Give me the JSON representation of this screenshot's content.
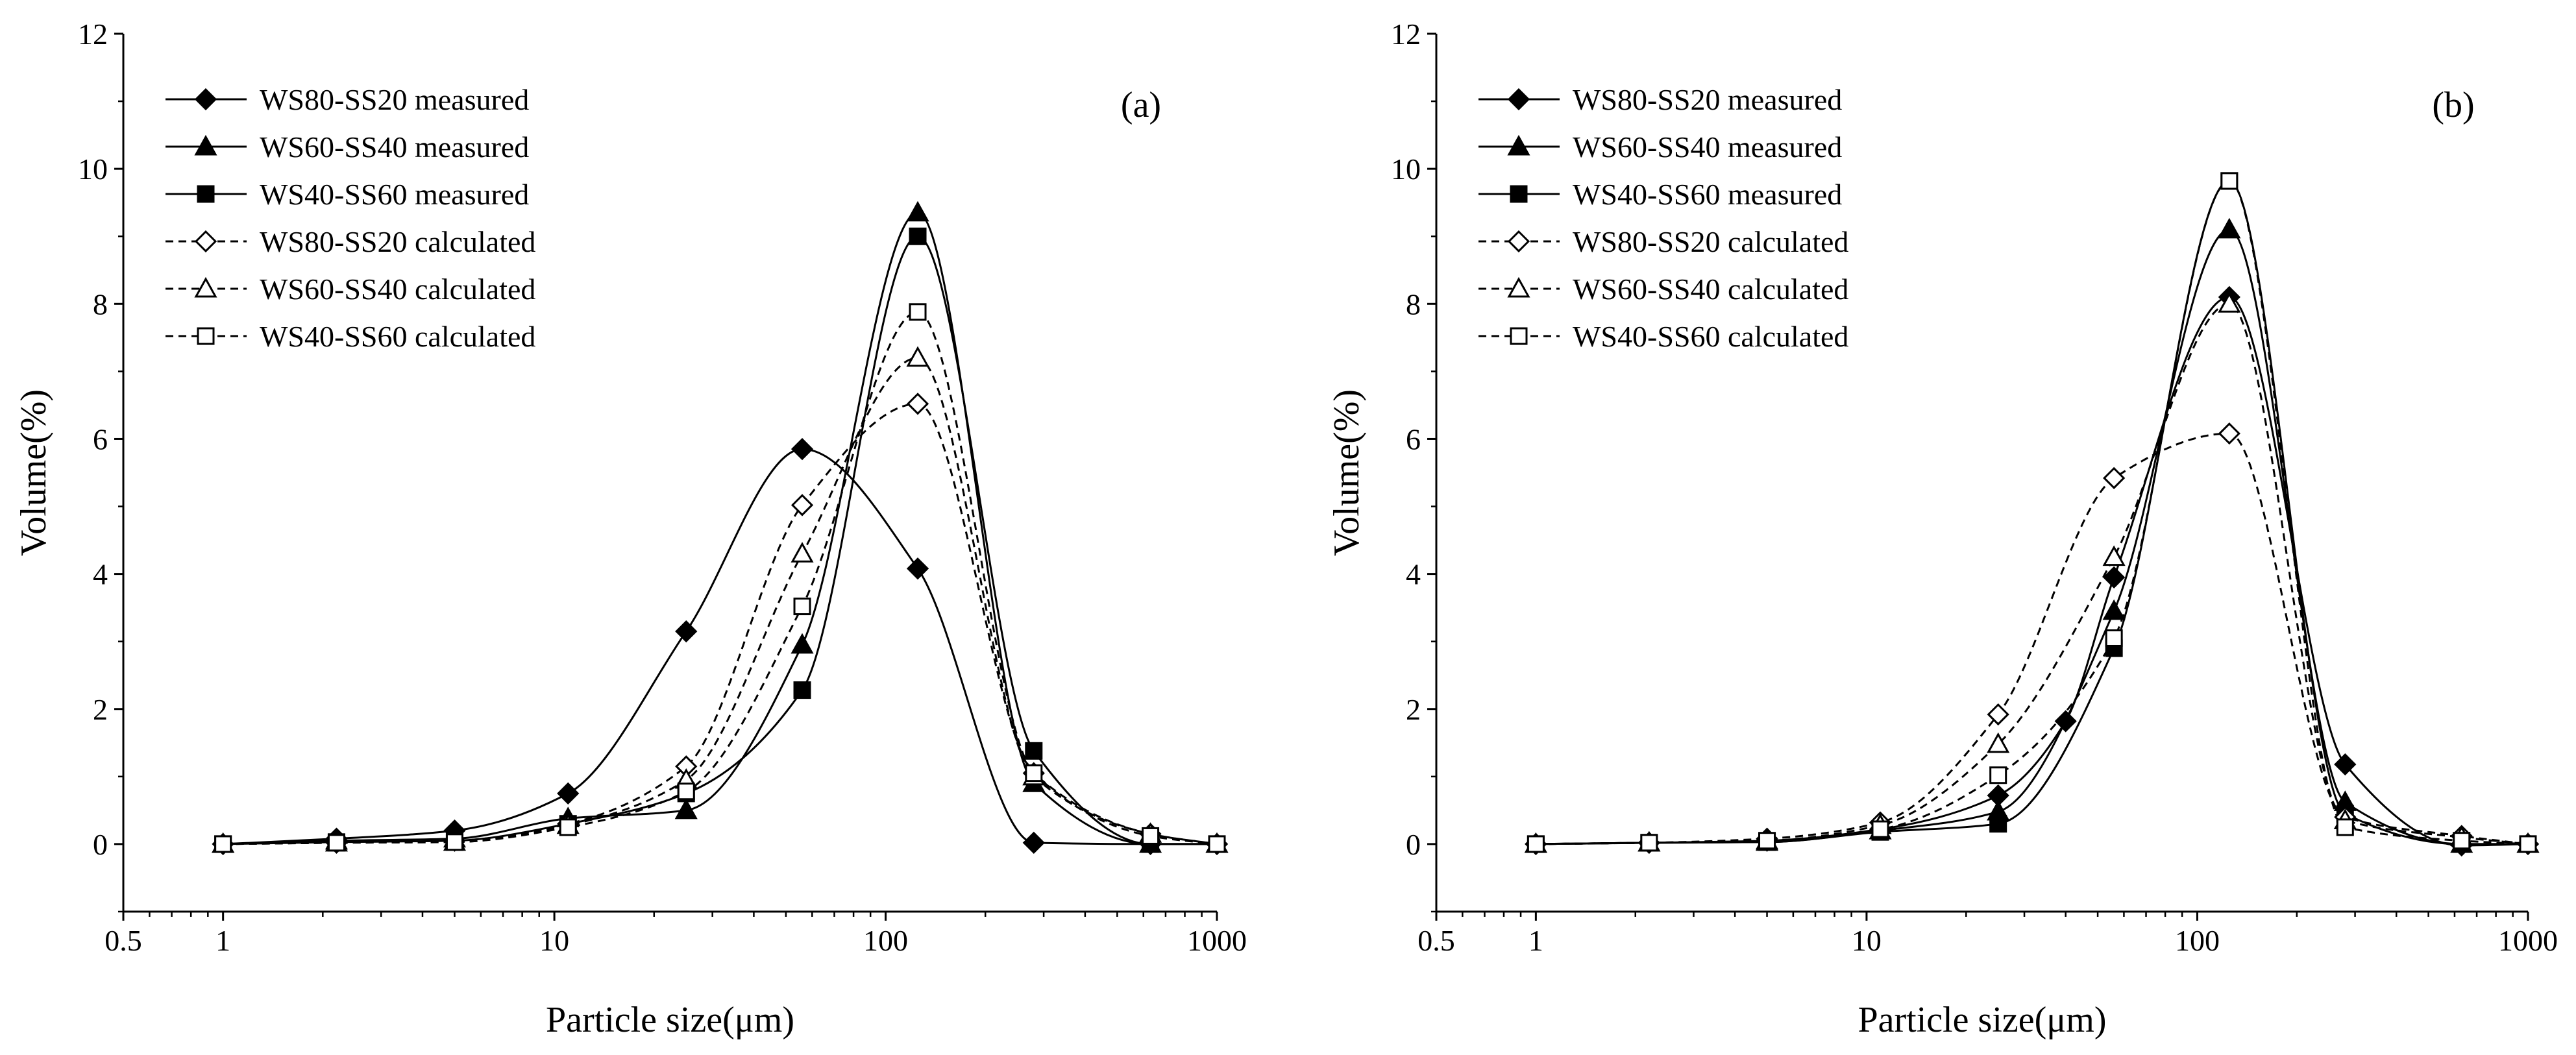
{
  "chart_data": [
    {
      "type": "line",
      "panel_label": "(a)",
      "xlabel": "Particle size(μm)",
      "ylabel": "Volume(%)",
      "xscale": "log",
      "xlim": [
        0.5,
        1000
      ],
      "ylim": [
        -1,
        12
      ],
      "xticks": [
        0.5,
        1,
        10,
        100,
        1000
      ],
      "xtick_labels": [
        "0.5",
        "1",
        "10",
        "100",
        "1000"
      ],
      "yticks": [
        0,
        2,
        4,
        6,
        8,
        10,
        12
      ],
      "ytick_labels": [
        "0",
        "2",
        "4",
        "6",
        "8",
        "10",
        "12"
      ],
      "legend_position": "top-left",
      "series": [
        {
          "name": "WS80-SS20 measured",
          "marker": "diamond",
          "filled": true,
          "dashed": false,
          "points": [
            [
              1,
              0
            ],
            [
              2.2,
              0.08
            ],
            [
              5,
              0.2
            ],
            [
              11,
              0.75
            ],
            [
              25,
              3.15
            ],
            [
              56,
              5.85
            ],
            [
              125,
              4.08
            ],
            [
              280,
              0.02
            ],
            [
              630,
              0
            ],
            [
              1000,
              0
            ]
          ]
        },
        {
          "name": "WS60-SS40 measured",
          "marker": "triangle",
          "filled": true,
          "dashed": false,
          "points": [
            [
              1,
              0
            ],
            [
              2.2,
              0.05
            ],
            [
              5,
              0.08
            ],
            [
              11,
              0.38
            ],
            [
              25,
              0.5
            ],
            [
              56,
              2.95
            ],
            [
              125,
              9.35
            ],
            [
              280,
              0.9
            ],
            [
              630,
              0
            ],
            [
              1000,
              0
            ]
          ]
        },
        {
          "name": "WS40-SS60 measured",
          "marker": "square",
          "filled": true,
          "dashed": false,
          "points": [
            [
              1,
              0
            ],
            [
              2.2,
              0.03
            ],
            [
              5,
              0.05
            ],
            [
              11,
              0.3
            ],
            [
              25,
              0.75
            ],
            [
              56,
              2.28
            ],
            [
              125,
              9.0
            ],
            [
              280,
              1.38
            ],
            [
              630,
              0
            ],
            [
              1000,
              0
            ]
          ]
        },
        {
          "name": "WS80-SS20 calculated",
          "marker": "diamond",
          "filled": false,
          "dashed": true,
          "points": [
            [
              1,
              0
            ],
            [
              2.2,
              0.02
            ],
            [
              5,
              0.05
            ],
            [
              11,
              0.3
            ],
            [
              25,
              1.15
            ],
            [
              56,
              5.02
            ],
            [
              125,
              6.52
            ],
            [
              280,
              1.05
            ],
            [
              630,
              0.15
            ],
            [
              1000,
              0
            ]
          ]
        },
        {
          "name": "WS60-SS40 calculated",
          "marker": "triangle",
          "filled": false,
          "dashed": true,
          "points": [
            [
              1,
              0
            ],
            [
              2.2,
              0.02
            ],
            [
              5,
              0.03
            ],
            [
              11,
              0.28
            ],
            [
              25,
              0.95
            ],
            [
              56,
              4.3
            ],
            [
              125,
              7.2
            ],
            [
              280,
              1.0
            ],
            [
              630,
              0.15
            ],
            [
              1000,
              0
            ]
          ]
        },
        {
          "name": "WS40-SS60 calculated",
          "marker": "square",
          "filled": false,
          "dashed": true,
          "points": [
            [
              1,
              0
            ],
            [
              2.2,
              0.02
            ],
            [
              5,
              0.03
            ],
            [
              11,
              0.25
            ],
            [
              25,
              0.78
            ],
            [
              56,
              3.52
            ],
            [
              125,
              7.88
            ],
            [
              280,
              1.05
            ],
            [
              630,
              0.12
            ],
            [
              1000,
              0
            ]
          ]
        }
      ]
    },
    {
      "type": "line",
      "panel_label": "(b)",
      "xlabel": "Particle size(μm)",
      "ylabel": "Volume(%)",
      "xscale": "log",
      "xlim": [
        0.5,
        1000
      ],
      "ylim": [
        -1,
        12
      ],
      "xticks": [
        0.5,
        1,
        10,
        100,
        1000
      ],
      "xtick_labels": [
        "0.5",
        "1",
        "10",
        "100",
        "1000"
      ],
      "yticks": [
        0,
        2,
        4,
        6,
        8,
        10,
        12
      ],
      "ytick_labels": [
        "0",
        "2",
        "4",
        "6",
        "8",
        "10",
        "12"
      ],
      "legend_position": "top-left",
      "series": [
        {
          "name": "WS80-SS20 measured",
          "marker": "diamond",
          "filled": true,
          "dashed": false,
          "points": [
            [
              1,
              0
            ],
            [
              2.2,
              0.02
            ],
            [
              5,
              0.05
            ],
            [
              11,
              0.22
            ],
            [
              25,
              0.72
            ],
            [
              40,
              1.82
            ],
            [
              56,
              3.95
            ],
            [
              125,
              8.1
            ],
            [
              280,
              1.18
            ],
            [
              630,
              -0.02
            ],
            [
              1000,
              0
            ]
          ]
        },
        {
          "name": "WS60-SS40 measured",
          "marker": "triangle",
          "filled": true,
          "dashed": false,
          "points": [
            [
              1,
              0
            ],
            [
              2.2,
              0.02
            ],
            [
              5,
              0.03
            ],
            [
              11,
              0.2
            ],
            [
              25,
              0.48
            ],
            [
              56,
              3.45
            ],
            [
              125,
              9.1
            ],
            [
              280,
              0.62
            ],
            [
              630,
              0
            ],
            [
              1000,
              0
            ]
          ]
        },
        {
          "name": "WS40-SS60 measured",
          "marker": "square",
          "filled": true,
          "dashed": false,
          "points": [
            [
              1,
              0
            ],
            [
              2.2,
              0.02
            ],
            [
              5,
              0.03
            ],
            [
              11,
              0.18
            ],
            [
              25,
              0.3
            ],
            [
              56,
              2.9
            ],
            [
              125,
              9.82
            ],
            [
              280,
              0.45
            ],
            [
              630,
              0
            ],
            [
              1000,
              0
            ]
          ]
        },
        {
          "name": "WS80-SS20 calculated",
          "marker": "diamond",
          "filled": false,
          "dashed": true,
          "points": [
            [
              1,
              0
            ],
            [
              2.2,
              0.02
            ],
            [
              5,
              0.08
            ],
            [
              11,
              0.32
            ],
            [
              25,
              1.92
            ],
            [
              56,
              5.42
            ],
            [
              125,
              6.08
            ],
            [
              280,
              0.4
            ],
            [
              630,
              0.12
            ],
            [
              1000,
              0
            ]
          ]
        },
        {
          "name": "WS60-SS40 calculated",
          "marker": "triangle",
          "filled": false,
          "dashed": true,
          "points": [
            [
              1,
              0
            ],
            [
              2.2,
              0.02
            ],
            [
              5,
              0.05
            ],
            [
              11,
              0.28
            ],
            [
              25,
              1.48
            ],
            [
              56,
              4.25
            ],
            [
              125,
              8.0
            ],
            [
              280,
              0.35
            ],
            [
              630,
              0.1
            ],
            [
              1000,
              0
            ]
          ]
        },
        {
          "name": "WS40-SS60 calculated",
          "marker": "square",
          "filled": false,
          "dashed": true,
          "points": [
            [
              1,
              0
            ],
            [
              2.2,
              0.02
            ],
            [
              5,
              0.05
            ],
            [
              11,
              0.22
            ],
            [
              25,
              1.02
            ],
            [
              56,
              3.05
            ],
            [
              125,
              9.82
            ],
            [
              280,
              0.25
            ],
            [
              630,
              0.05
            ],
            [
              1000,
              0
            ]
          ]
        }
      ]
    }
  ]
}
